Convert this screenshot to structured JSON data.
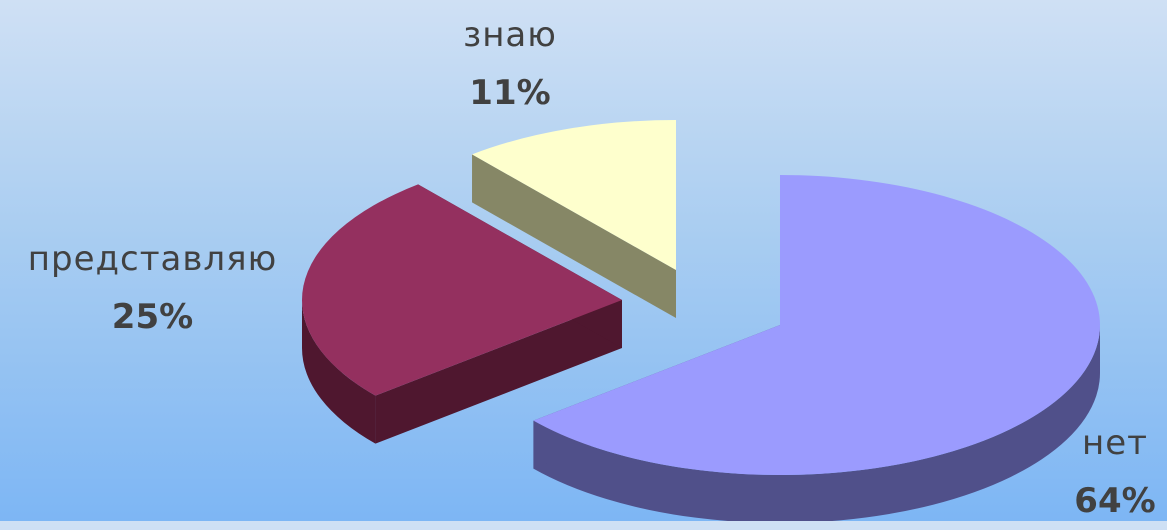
{
  "chart_data": {
    "type": "pie",
    "style": "3d-exploded",
    "slices": [
      {
        "label": "нет",
        "percent_label": "64%",
        "value": 64,
        "color": "#9b9bfe",
        "side_color": "#50508a"
      },
      {
        "label": "представляю",
        "percent_label": "25%",
        "value": 25,
        "color": "#94305f",
        "side_color": "#4f172f"
      },
      {
        "label": "знаю",
        "percent_label": "11%",
        "value": 11,
        "color": "#feffcd",
        "side_color": "#868766"
      }
    ]
  }
}
